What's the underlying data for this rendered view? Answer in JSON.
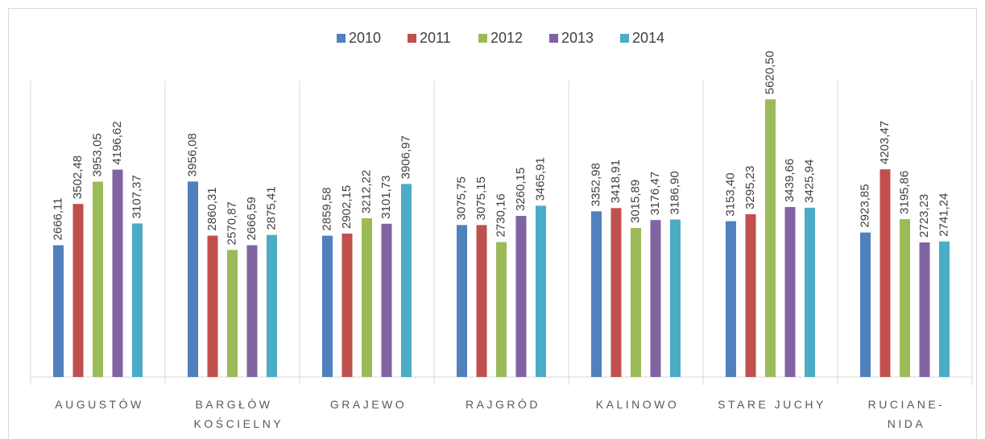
{
  "chart_data": {
    "type": "bar",
    "categories": [
      "AUGUSTÓW",
      "BARGŁÓW KOŚCIELNY",
      "GRAJEWO",
      "RAJGRÓD",
      "KALINOWO",
      "STARE JUCHY",
      "RUCIANE-NIDA"
    ],
    "series": [
      {
        "name": "2010",
        "color": "#4f81bd",
        "values": [
          2666.11,
          3956.08,
          2859.58,
          3075.75,
          3352.98,
          3153.4,
          2923.85
        ],
        "value_labels": [
          "2666,11",
          "3956,08",
          "2859,58",
          "3075,75",
          "3352,98",
          "3153,40",
          "2923,85"
        ]
      },
      {
        "name": "2011",
        "color": "#c0504d",
        "values": [
          3502.48,
          2860.31,
          2902.15,
          3075.15,
          3418.91,
          3295.23,
          4203.47
        ],
        "value_labels": [
          "3502,48",
          "2860,31",
          "2902,15",
          "3075,15",
          "3418,91",
          "3295,23",
          "4203,47"
        ]
      },
      {
        "name": "2012",
        "color": "#9bbb59",
        "values": [
          3953.05,
          2570.87,
          3212.22,
          2730.16,
          3015.89,
          5620.5,
          3195.86
        ],
        "value_labels": [
          "3953,05",
          "2570,87",
          "3212,22",
          "2730,16",
          "3015,89",
          "5620,50",
          "3195,86"
        ]
      },
      {
        "name": "2013",
        "color": "#8064a2",
        "values": [
          4196.62,
          2666.59,
          3101.73,
          3260.15,
          3176.47,
          3439.66,
          2723.23
        ],
        "value_labels": [
          "4196,62",
          "2666,59",
          "3101,73",
          "3260,15",
          "3176,47",
          "3439,66",
          "2723,23"
        ]
      },
      {
        "name": "2014",
        "color": "#4bacc6",
        "values": [
          3107.37,
          2875.41,
          3906.97,
          3465.91,
          3186.9,
          3425.94,
          2741.24
        ],
        "value_labels": [
          "3107,37",
          "2875,41",
          "3906,97",
          "3465,91",
          "3186,90",
          "3425,94",
          "2741,24"
        ]
      }
    ],
    "ylim": [
      0,
      6000
    ],
    "legend": "top"
  }
}
